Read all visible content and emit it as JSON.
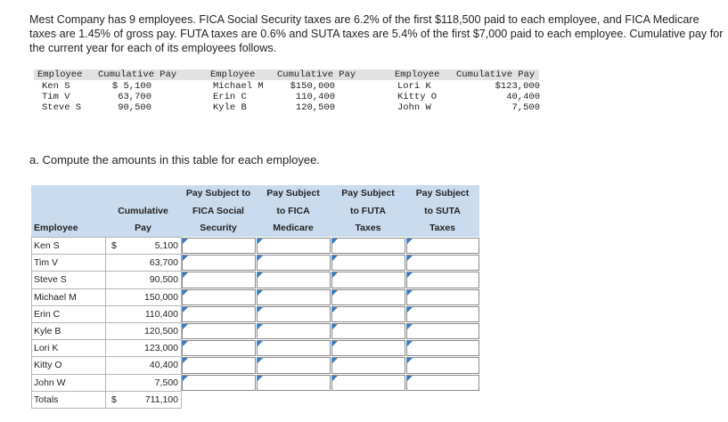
{
  "intro": "Mest Company has 9 employees. FICA Social Security taxes are 6.2% of the first $118,500 paid to each employee, and FICA Medicare taxes are 1.45% of gross pay. FUTA taxes are 0.6% and SUTA taxes are 5.4% of the first $7,000 paid to each employee. Cumulative pay for the current year for each of its employees follows.",
  "info_table": {
    "header": [
      "Employee",
      "Cumulative Pay",
      "Employee",
      "Cumulative Pay",
      "Employee",
      "Cumulative Pay"
    ],
    "rows": [
      [
        "Ken S",
        "$ 5,100",
        "Michael M",
        "$150,000",
        "Lori K",
        "$123,000"
      ],
      [
        "Tim V",
        "63,700",
        "Erin C",
        "110,400",
        "Kitty O",
        "40,400"
      ],
      [
        "Steve S",
        "90,500",
        "Kyle B",
        "120,500",
        "John W",
        "7,500"
      ]
    ]
  },
  "question": "a. Compute the amounts in this table for each employee.",
  "table": {
    "columns": [
      [
        "Employee"
      ],
      [
        "Cumulative",
        "Pay"
      ],
      [
        "Pay Subject to",
        "FICA Social",
        "Security"
      ],
      [
        "Pay Subject",
        "to FICA",
        "Medicare"
      ],
      [
        "Pay Subject",
        "to FUTA",
        "Taxes"
      ],
      [
        "Pay Subject",
        "to SUTA",
        "Taxes"
      ]
    ],
    "rows": [
      {
        "name": "Ken S",
        "currency": "$",
        "pay": "5,100"
      },
      {
        "name": "Tim V",
        "pay": "63,700"
      },
      {
        "name": "Steve S",
        "pay": "90,500"
      },
      {
        "name": "Michael M",
        "pay": "150,000"
      },
      {
        "name": "Erin C",
        "pay": "110,400"
      },
      {
        "name": "Kyle B",
        "pay": "120,500"
      },
      {
        "name": "Lori K",
        "pay": "123,000"
      },
      {
        "name": "Kitty O",
        "pay": "40,400"
      },
      {
        "name": "John W",
        "pay": "7,500"
      }
    ],
    "totals": {
      "name": "Totals",
      "currency": "$",
      "pay": "711,100"
    }
  }
}
